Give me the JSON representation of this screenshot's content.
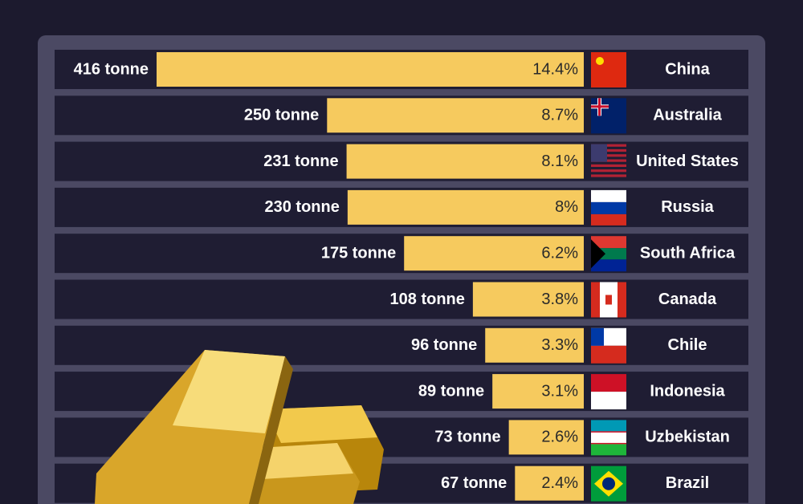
{
  "chart_data": {
    "type": "bar",
    "orientation": "horizontal",
    "categories": [
      "China",
      "Australia",
      "United States",
      "Russia",
      "South Africa",
      "Canada",
      "Chile",
      "Indonesia",
      "Uzbekistan",
      "Brazil"
    ],
    "values": [
      416,
      250,
      231,
      230,
      175,
      108,
      96,
      89,
      73,
      67
    ],
    "value_labels": [
      "416 tonne",
      "250 tonne",
      "231 tonne",
      "230 tonne",
      "175 tonne",
      "108 tonne",
      "96 tonne",
      "89 tonne",
      "73 tonne",
      "67 tonne"
    ],
    "shares": [
      14.4,
      8.7,
      8.1,
      8,
      6.2,
      3.8,
      3.3,
      3.1,
      2.6,
      2.4
    ],
    "share_labels": [
      "14.4%",
      "8.7%",
      "8.1%",
      "8%",
      "6.2%",
      "3.8%",
      "3.3%",
      "3.1%",
      "2.6%",
      "2.4%"
    ],
    "color": "#f6ca5e"
  }
}
